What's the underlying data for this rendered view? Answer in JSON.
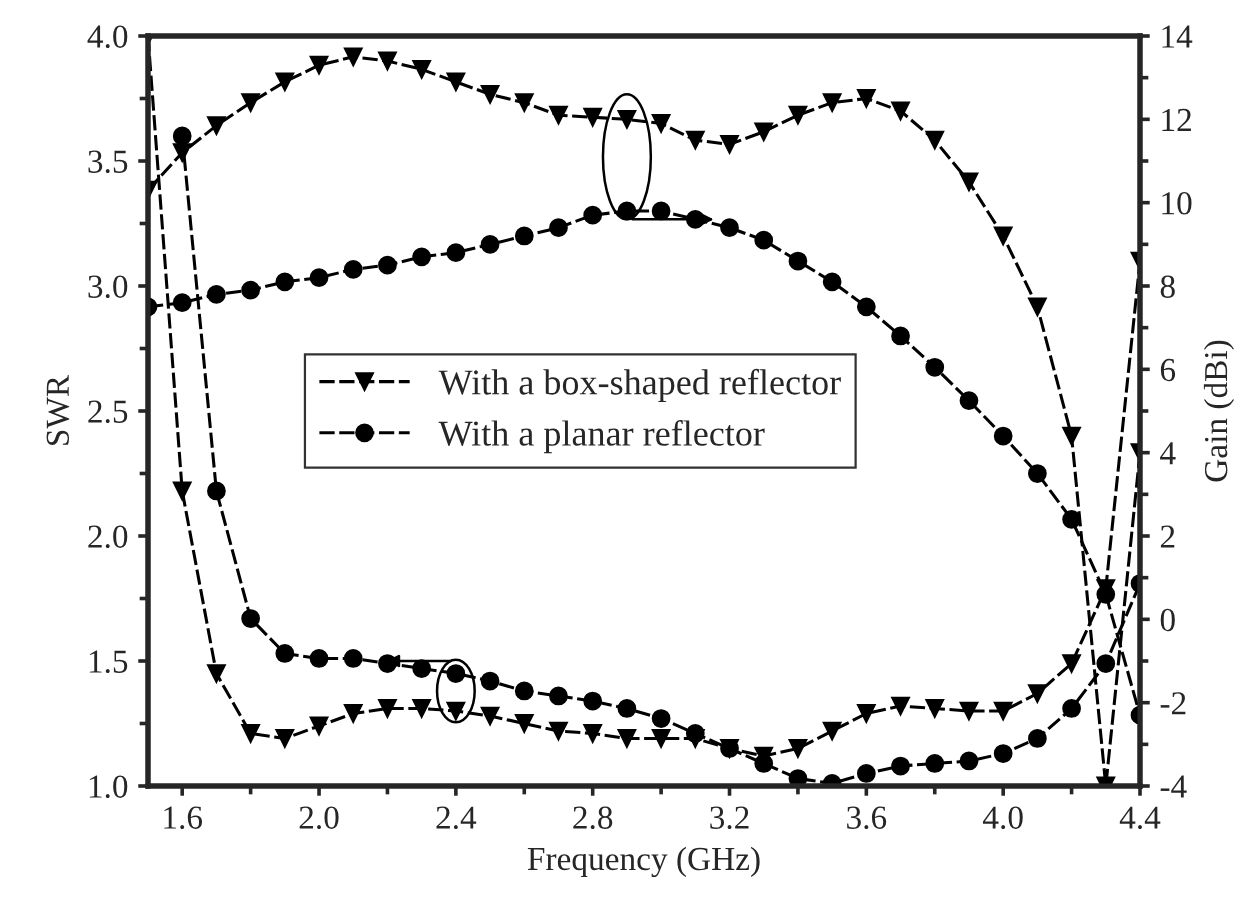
{
  "chart_data": {
    "type": "line",
    "xlabel": "Frequency (GHz)",
    "ylabel": "SWR",
    "y2label": "Gain (dBi)",
    "x": [
      1.5,
      1.6,
      1.7,
      1.8,
      1.9,
      2.0,
      2.1,
      2.2,
      2.3,
      2.4,
      2.5,
      2.6,
      2.7,
      2.8,
      2.9,
      3.0,
      3.1,
      3.2,
      3.3,
      3.4,
      3.5,
      3.6,
      3.7,
      3.8,
      3.9,
      4.0,
      4.1,
      4.2,
      4.3,
      4.4
    ],
    "series": [
      {
        "name": "With a box-shaped reflector",
        "color": "#000000",
        "marker": "triangle",
        "values": [
          4.0,
          2.18,
          1.45,
          1.21,
          1.19,
          1.24,
          1.29,
          1.31,
          1.31,
          1.3,
          1.28,
          1.25,
          1.22,
          1.21,
          1.19,
          1.19,
          1.19,
          1.15,
          1.12,
          1.15,
          1.22,
          1.29,
          1.32,
          1.31,
          1.3,
          1.3,
          1.37,
          1.49,
          1.79,
          3.1
        ]
      },
      {
        "name": "With a planar reflector",
        "color": "#000000",
        "marker": "circle",
        "values": [
          null,
          3.6,
          2.18,
          1.67,
          1.53,
          1.51,
          1.51,
          1.49,
          1.47,
          1.45,
          1.42,
          1.38,
          1.36,
          1.34,
          1.31,
          1.27,
          1.21,
          1.15,
          1.09,
          1.03,
          1.01,
          1.05,
          1.08,
          1.09,
          1.1,
          1.13,
          1.19,
          1.31,
          1.49,
          1.81
        ]
      },
      {
        "color": "#000000",
        "marker": "triangle",
        "axis": "y2",
        "values": [
          10.3,
          11.2,
          11.85,
          12.4,
          12.9,
          13.3,
          13.5,
          13.4,
          13.2,
          12.9,
          12.6,
          12.4,
          12.1,
          12.05,
          12.0,
          11.9,
          11.5,
          11.4,
          11.7,
          12.1,
          12.4,
          12.5,
          12.2,
          11.5,
          10.5,
          9.2,
          7.5,
          4.4,
          -4,
          4.0
        ]
      },
      {
        "color": "#000000",
        "marker": "circle",
        "axis": "y2",
        "values": [
          7.5,
          7.6,
          7.8,
          7.9,
          8.1,
          8.2,
          8.4,
          8.5,
          8.7,
          8.8,
          9.0,
          9.2,
          9.4,
          9.7,
          9.8,
          9.8,
          9.6,
          9.4,
          9.1,
          8.6,
          8.1,
          7.5,
          6.8,
          6.05,
          5.25,
          4.4,
          3.5,
          2.4,
          0.6,
          -2.3
        ]
      }
    ],
    "xlim": [
      1.5,
      4.4
    ],
    "xticks": [
      1.6,
      {
        "value": 2,
        "label": "2.0"
      },
      2.4,
      2.8,
      3.2,
      3.6,
      {
        "value": 4,
        "label": "4.0"
      },
      4.4
    ],
    "ylim": [
      1.0,
      4.0
    ],
    "yticks": [
      {
        "value": 1,
        "label": "1.0"
      },
      1.5,
      {
        "value": 2,
        "label": "2.0"
      },
      2.5,
      {
        "value": 3,
        "label": "3.0"
      },
      3.5,
      {
        "value": 4,
        "label": "4.0"
      }
    ],
    "y2lim": [
      -4,
      14
    ],
    "y2ticks": [
      -4,
      -2,
      0,
      2,
      4,
      6,
      8,
      10,
      12,
      14
    ],
    "legend": "center left",
    "line_style": "dashed",
    "grid": false
  }
}
